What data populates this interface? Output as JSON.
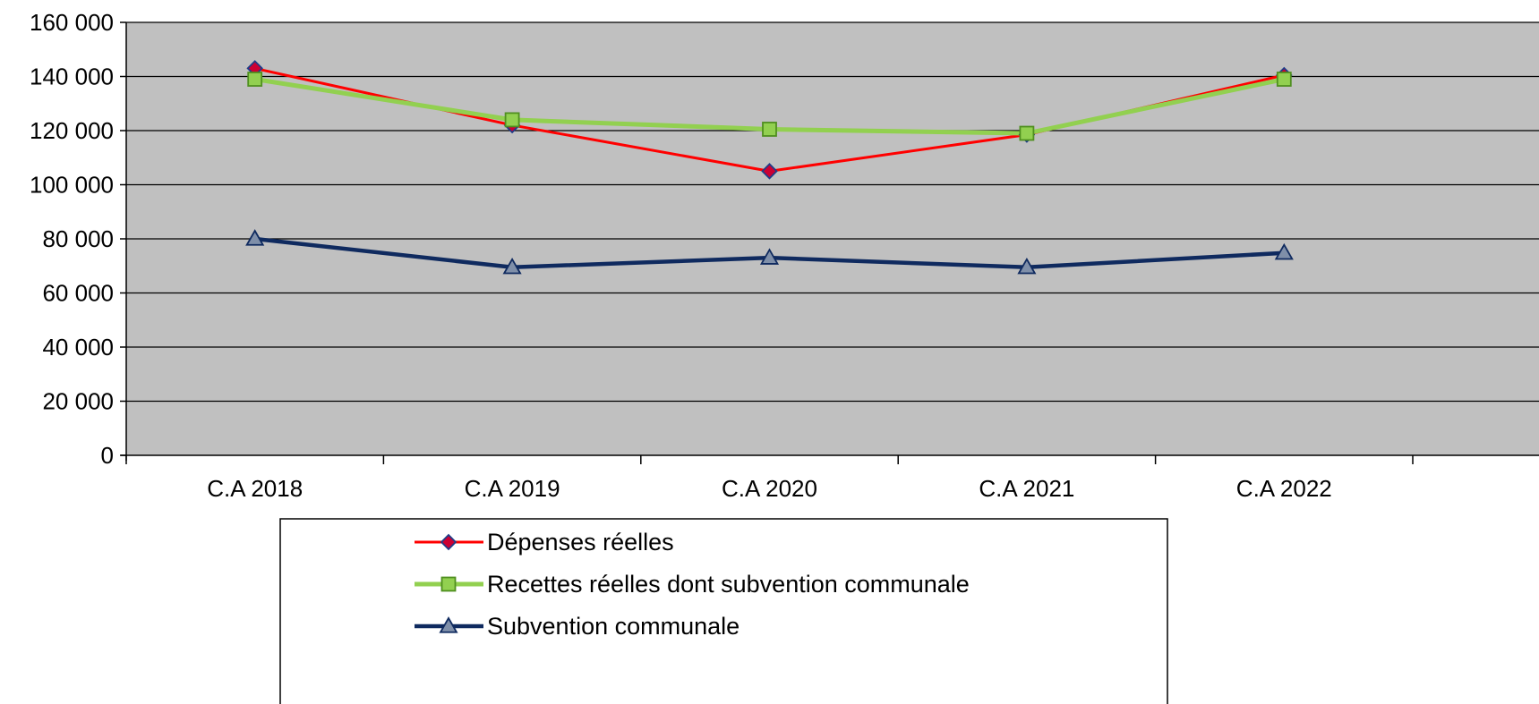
{
  "chart_data": {
    "type": "line",
    "title": "",
    "xlabel": "",
    "ylabel": "",
    "categories": [
      "C.A 2018",
      "C.A 2019",
      "C.A 2020",
      "C.A 2021",
      "C.A 2022"
    ],
    "ylim": [
      0,
      160000
    ],
    "yticks": [
      0,
      20000,
      40000,
      60000,
      80000,
      100000,
      120000,
      140000,
      160000
    ],
    "ytick_labels": [
      "0",
      "20 000",
      "40 000",
      "60 000",
      "80 000",
      "100 000",
      "120 000",
      "140 000",
      "160 000"
    ],
    "grid": true,
    "plot_background": "#C0C0C0",
    "legend_position": "bottom",
    "series": [
      {
        "name": "Dépenses réelles",
        "values": [
          143000,
          122000,
          105000,
          118500,
          140500
        ],
        "color": "#FF0000",
        "marker": "diamond",
        "marker_fill": "#CC0033",
        "marker_stroke": "#1F3C88"
      },
      {
        "name": "Recettes réelles dont subvention communale",
        "values": [
          139000,
          124000,
          120500,
          119000,
          139000
        ],
        "color": "#92D050",
        "marker": "square",
        "marker_fill": "#92D050",
        "marker_stroke": "#4F8F1F"
      },
      {
        "name": "Subvention communale",
        "values": [
          80000,
          69500,
          73000,
          69500,
          74800
        ],
        "color": "#0F2A5F",
        "marker": "triangle",
        "marker_fill": "#7F8FA9",
        "marker_stroke": "#0F2A5F"
      }
    ]
  }
}
